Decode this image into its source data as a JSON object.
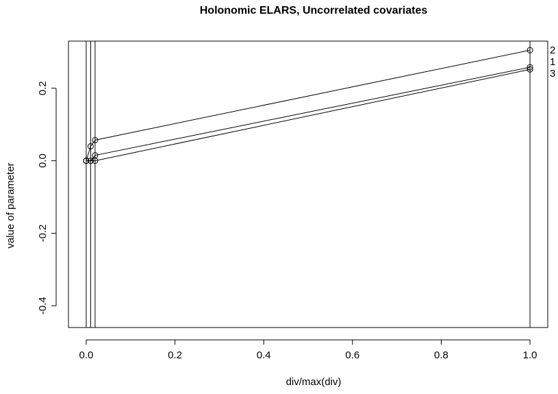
{
  "chart_data": {
    "type": "line",
    "title": "Holonomic ELARS, Uncorrelated covariates",
    "xlabel": "div/max(div)",
    "ylabel": "value of parameter",
    "xlim": [
      -0.04,
      1.04
    ],
    "ylim": [
      -0.46,
      0.33
    ],
    "xticks": [
      0.0,
      0.2,
      0.4,
      0.6,
      0.8,
      1.0
    ],
    "xtick_labels": [
      "0.0",
      "0.2",
      "0.4",
      "0.6",
      "0.8",
      "1.0"
    ],
    "yticks": [
      -0.4,
      -0.2,
      0.0,
      0.2
    ],
    "ytick_labels": [
      "-0.4",
      "-0.2",
      "0.0",
      "0.2"
    ],
    "vlines": [
      0.0,
      0.01,
      0.02,
      1.0
    ],
    "grid": false,
    "legend": "none",
    "series": [
      {
        "name": "1",
        "x": [
          0.0,
          0.01,
          0.02,
          1.0
        ],
        "y": [
          0.0,
          0.0,
          0.015,
          0.258
        ]
      },
      {
        "name": "2",
        "x": [
          0.0,
          0.01,
          0.02,
          1.0
        ],
        "y": [
          0.0,
          0.04,
          0.057,
          0.305
        ]
      },
      {
        "name": "3",
        "x": [
          0.0,
          0.01,
          0.02,
          1.0
        ],
        "y": [
          0.0,
          0.0,
          0.0,
          0.252
        ]
      }
    ]
  }
}
